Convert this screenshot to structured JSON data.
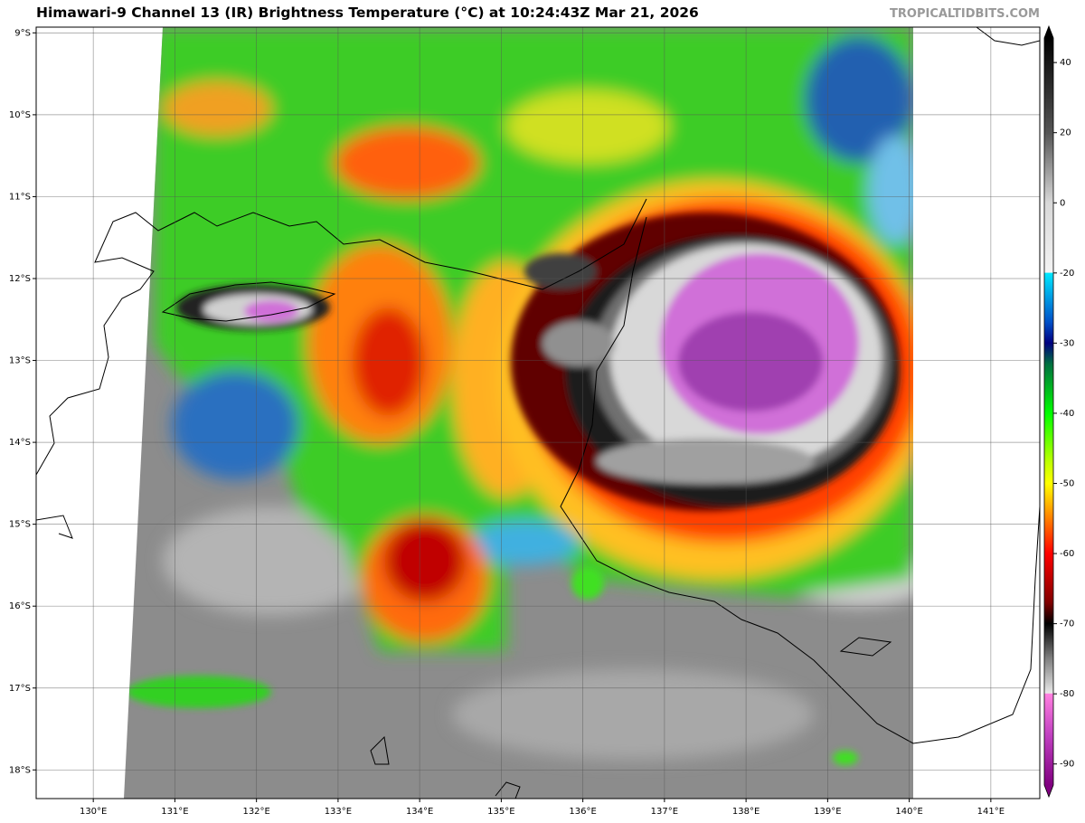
{
  "map": {
    "title": "Himawari-9 Channel 13 (IR) Brightness Temperature (°C) at 10:24:43Z Mar 21, 2026",
    "credit": "TROPICALTIDBITS.COM",
    "lon_range": [
      129.3,
      141.6
    ],
    "lat_range": [
      -8.93,
      -18.35
    ],
    "lon_ticks": [
      {
        "value": 130,
        "label": "130°E"
      },
      {
        "value": 131,
        "label": "131°E"
      },
      {
        "value": 132,
        "label": "132°E"
      },
      {
        "value": 133,
        "label": "133°E"
      },
      {
        "value": 134,
        "label": "134°E"
      },
      {
        "value": 135,
        "label": "135°E"
      },
      {
        "value": 136,
        "label": "136°E"
      },
      {
        "value": 137,
        "label": "137°E"
      },
      {
        "value": 138,
        "label": "138°E"
      },
      {
        "value": 139,
        "label": "139°E"
      },
      {
        "value": 140,
        "label": "140°E"
      },
      {
        "value": 141,
        "label": "141°E"
      }
    ],
    "lat_ticks": [
      {
        "value": -9,
        "label": "9°S"
      },
      {
        "value": -10,
        "label": "10°S"
      },
      {
        "value": -11,
        "label": "11°S"
      },
      {
        "value": -12,
        "label": "12°S"
      },
      {
        "value": -13,
        "label": "13°S"
      },
      {
        "value": -14,
        "label": "14°S"
      },
      {
        "value": -15,
        "label": "15°S"
      },
      {
        "value": -16,
        "label": "16°S"
      },
      {
        "value": -17,
        "label": "17°S"
      },
      {
        "value": -18,
        "label": "18°S"
      }
    ]
  },
  "colorbar": {
    "lim": [
      -93,
      47
    ],
    "scale_break": -20,
    "ticks": [
      40,
      20,
      0,
      -20,
      -30,
      -40,
      -50,
      -60,
      -70,
      -80,
      -90
    ],
    "stops": [
      {
        "value": 47,
        "color": "#000000"
      },
      {
        "value": 20,
        "color": "#555555"
      },
      {
        "value": 0,
        "color": "#d8d8d8"
      },
      {
        "value": -19.9,
        "color": "#f4f4f4"
      },
      {
        "value": -20,
        "color": "#00e8ff"
      },
      {
        "value": -27,
        "color": "#0050c8"
      },
      {
        "value": -30,
        "color": "#000080"
      },
      {
        "value": -33,
        "color": "#007040"
      },
      {
        "value": -40,
        "color": "#00ff00"
      },
      {
        "value": -47,
        "color": "#c0ff00"
      },
      {
        "value": -50,
        "color": "#ffff00"
      },
      {
        "value": -55,
        "color": "#ff8000"
      },
      {
        "value": -60,
        "color": "#ff0000"
      },
      {
        "value": -67,
        "color": "#800000"
      },
      {
        "value": -70,
        "color": "#000000"
      },
      {
        "value": -75,
        "color": "#808080"
      },
      {
        "value": -79.9,
        "color": "#e8e8e8"
      },
      {
        "value": -80,
        "color": "#ff80e0"
      },
      {
        "value": -86,
        "color": "#c040c0"
      },
      {
        "value": -93,
        "color": "#800080"
      }
    ]
  }
}
